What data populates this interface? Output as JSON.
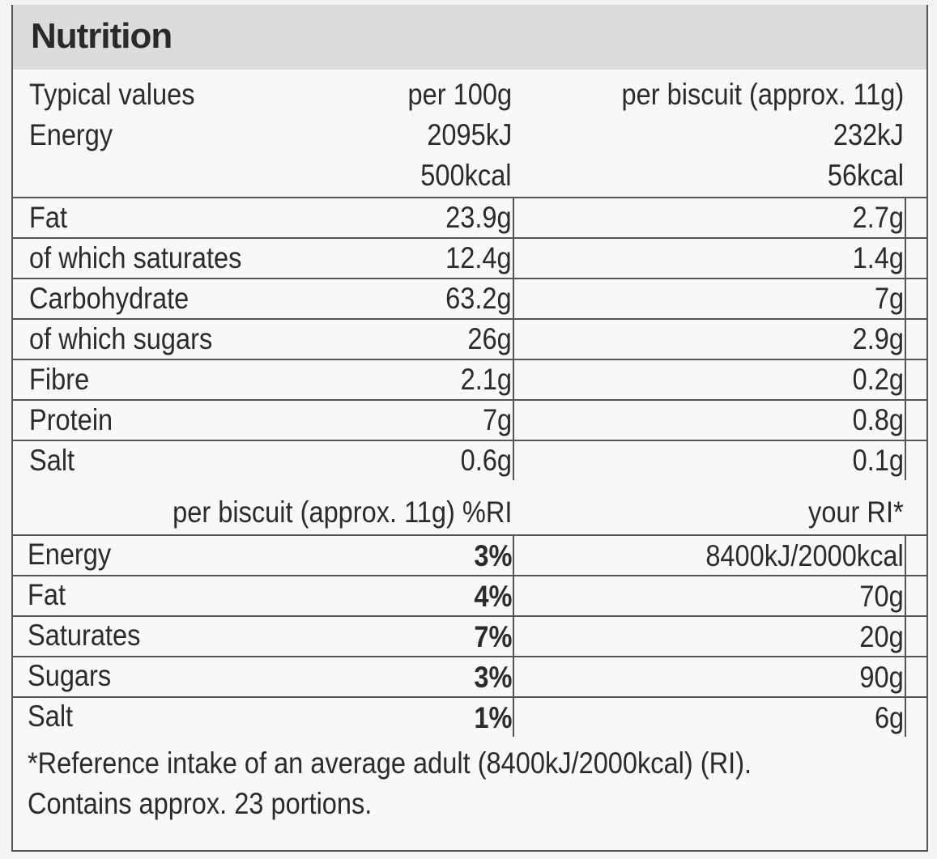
{
  "title": "Nutrition",
  "header": {
    "label": "Typical values",
    "col1": "per 100g",
    "col2": "per biscuit (approx. 11g)"
  },
  "energy": {
    "label": "Energy",
    "kj100": "2095kJ",
    "kjBiscuit": "232kJ",
    "kcal100": "500kcal",
    "kcalBiscuit": "56kcal"
  },
  "nutrients": [
    {
      "label": "Fat",
      "per100": "23.9g",
      "perBiscuit": "2.7g"
    },
    {
      "label": "of which saturates",
      "per100": "12.4g",
      "perBiscuit": "1.4g"
    },
    {
      "label": "Carbohydrate",
      "per100": "63.2g",
      "perBiscuit": "7g"
    },
    {
      "label": "of which sugars",
      "per100": "26g",
      "perBiscuit": "2.9g"
    },
    {
      "label": "Fibre",
      "per100": "2.1g",
      "perBiscuit": "0.2g"
    },
    {
      "label": "Protein",
      "per100": "7g",
      "perBiscuit": "0.8g"
    },
    {
      "label": "Salt",
      "per100": "0.6g",
      "perBiscuit": "0.1g"
    }
  ],
  "ri_header": {
    "col1": "per biscuit (approx. 11g) %RI",
    "col2": "your RI*"
  },
  "ri_rows": [
    {
      "label": "Energy",
      "pct": "3%",
      "ri": "8400kJ/2000kcal"
    },
    {
      "label": "Fat",
      "pct": "4%",
      "ri": "70g"
    },
    {
      "label": "Saturates",
      "pct": "7%",
      "ri": "20g"
    },
    {
      "label": "Sugars",
      "pct": "3%",
      "ri": "90g"
    },
    {
      "label": "Salt",
      "pct": "1%",
      "ri": "6g"
    }
  ],
  "footnote1": "*Reference intake of an average adult (8400kJ/2000kcal) (RI).",
  "footnote2": "Contains approx. 23 portions."
}
